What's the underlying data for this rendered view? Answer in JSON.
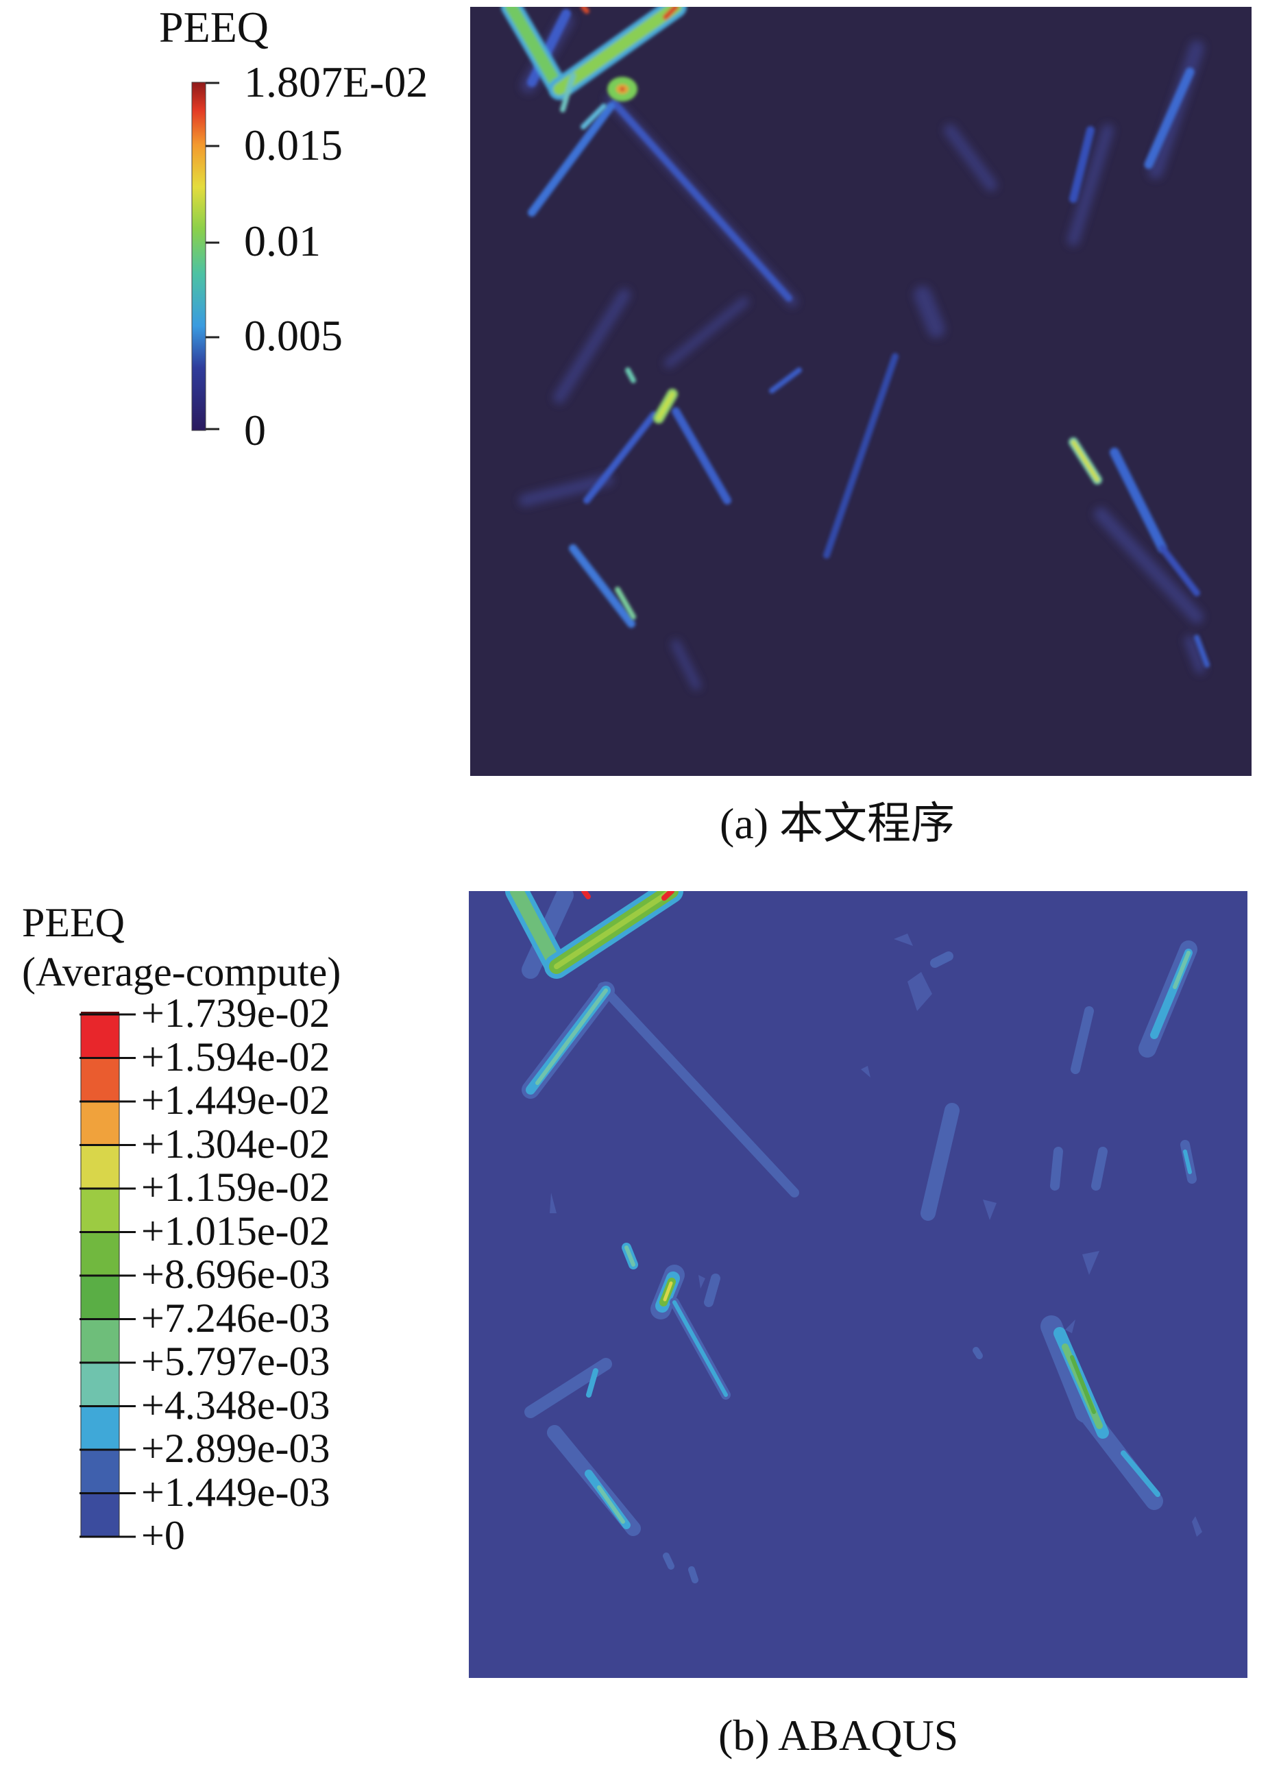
{
  "panel_a": {
    "legend_title": "PEEQ",
    "ticks": [
      "1.807E-02",
      "0.015",
      "0.01",
      "0.005",
      "0"
    ],
    "caption": "(a) 本文程序",
    "colors": {
      "background": "#2c2547",
      "low": "#2b1b5a",
      "high": "#a81c1c"
    }
  },
  "panel_b": {
    "legend_title_line1": "PEEQ",
    "legend_title_line2": "(Average-compute)",
    "ticks": [
      "+1.739e-02",
      "+1.594e-02",
      "+1.449e-02",
      "+1.304e-02",
      "+1.159e-02",
      "+1.015e-02",
      "+8.696e-03",
      "+7.246e-03",
      "+5.797e-03",
      "+4.348e-03",
      "+2.899e-03",
      "+1.449e-03",
      "+0"
    ],
    "bands": [
      "#e8262b",
      "#ea5c2f",
      "#f0a23c",
      "#d9d64a",
      "#9ccb42",
      "#71b83f",
      "#5aae45",
      "#6ebe7a",
      "#6fc3ad",
      "#3fa8d8",
      "#3f60ad",
      "#3b4c9e"
    ],
    "caption": "(b) ABAQUS",
    "colors": {
      "background": "#3e4490"
    }
  }
}
